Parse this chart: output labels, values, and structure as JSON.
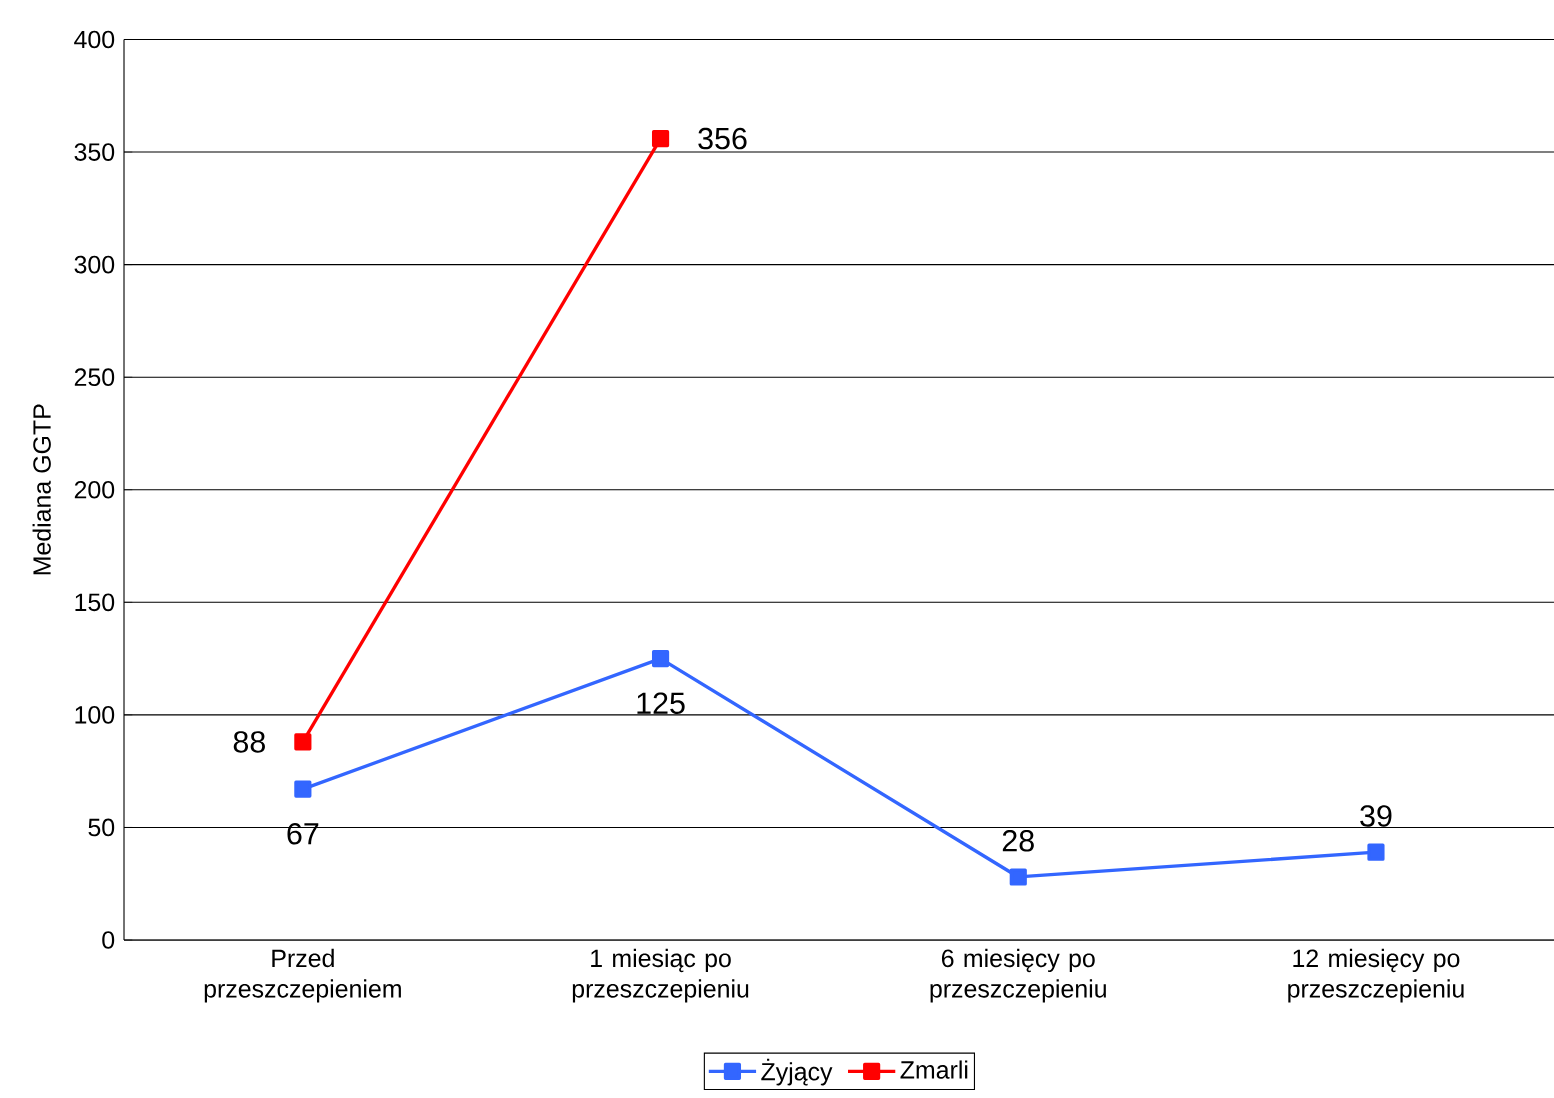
{
  "chart_data": {
    "type": "line",
    "ylabel": "Mediana GGTP",
    "categories": [
      "Przed przeszczepieniem",
      "1 miesiąc po przeszczepieniu",
      "6 miesięcy po przeszczepieniu",
      "12 miesięcy po przeszczepieniu"
    ],
    "series": [
      {
        "name": "Żyjący",
        "color": "#3366ff",
        "values": [
          67,
          125,
          28,
          39
        ]
      },
      {
        "name": "Zmarli",
        "color": "#ff0000",
        "values": [
          88,
          356,
          null,
          null
        ]
      }
    ],
    "ylim": [
      0,
      400
    ],
    "yticks": [
      0,
      50,
      100,
      150,
      200,
      250,
      300,
      350,
      400
    ],
    "grid": "y",
    "legend": "bottom",
    "marker": "square",
    "line_style": "solid",
    "data_labels": true
  }
}
